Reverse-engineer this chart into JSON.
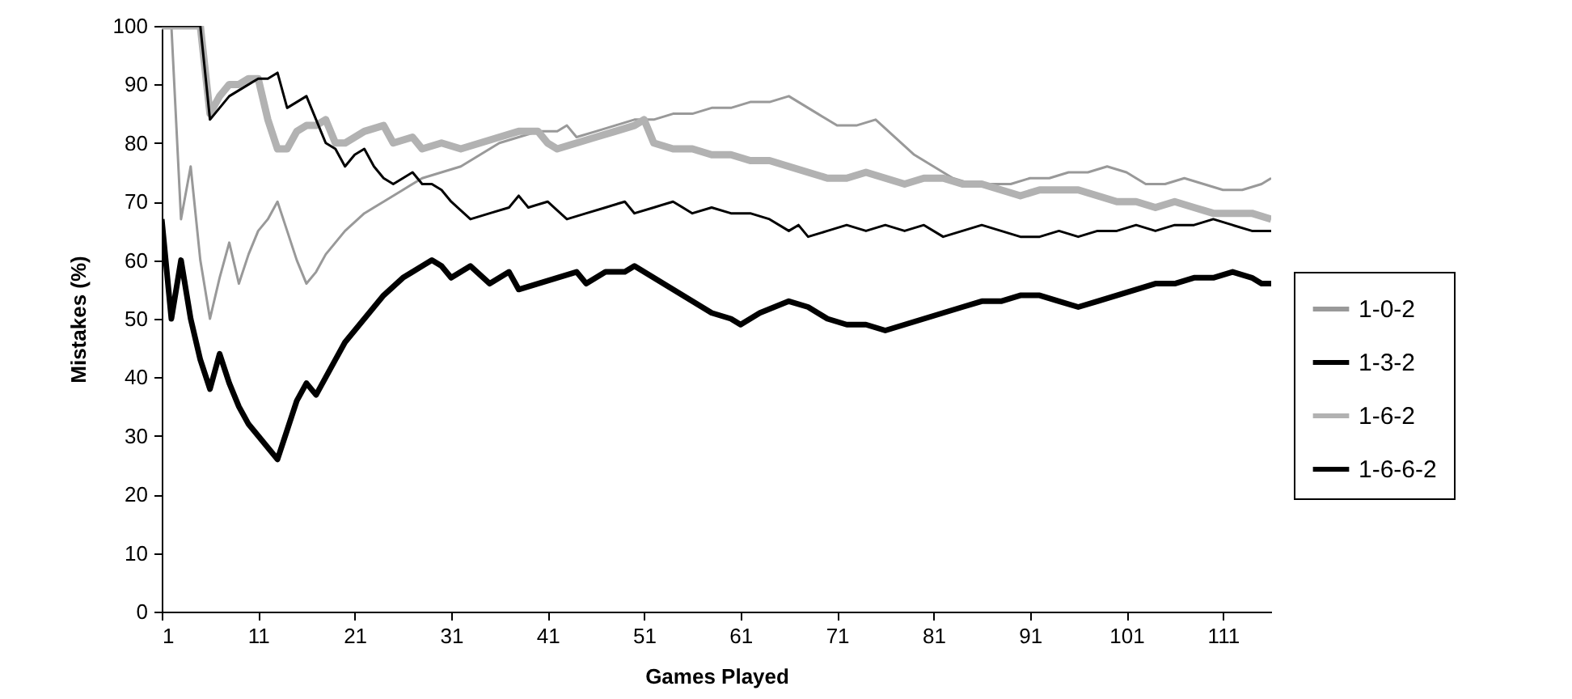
{
  "chart_data": {
    "type": "line",
    "xlabel": "Games Played",
    "ylabel": "Mistakes (%)",
    "xlim": [
      1,
      116
    ],
    "xticks": [
      1,
      11,
      21,
      31,
      41,
      51,
      61,
      71,
      81,
      91,
      101,
      111
    ],
    "ylim": [
      0,
      100
    ],
    "yticks": [
      0,
      10,
      20,
      30,
      40,
      50,
      60,
      70,
      80,
      90,
      100
    ],
    "grid": false,
    "legend": "right",
    "marker": "none",
    "series": [
      {
        "name": "1-0-2",
        "color": "#999999",
        "x": [
          1,
          2,
          3,
          4,
          5,
          6,
          7,
          8,
          9,
          10,
          11,
          12,
          13,
          14,
          15,
          16,
          17,
          18,
          20,
          22,
          24,
          26,
          28,
          30,
          32,
          34,
          36,
          38,
          40,
          42,
          43,
          44,
          46,
          48,
          50,
          52,
          54,
          56,
          58,
          60,
          62,
          64,
          66,
          67,
          69,
          71,
          73,
          75,
          77,
          79,
          81,
          83,
          85,
          87,
          89,
          91,
          93,
          95,
          97,
          99,
          101,
          103,
          105,
          107,
          109,
          111,
          113,
          115,
          116
        ],
        "values": [
          100,
          100,
          67,
          76,
          60,
          50,
          57,
          63,
          56,
          61,
          65,
          67,
          70,
          65,
          60,
          56,
          58,
          61,
          65,
          68,
          70,
          72,
          74,
          75,
          76,
          78,
          80,
          81,
          82,
          82,
          83,
          81,
          82,
          83,
          84,
          84,
          85,
          85,
          86,
          86,
          87,
          87,
          88,
          87,
          85,
          83,
          83,
          84,
          81,
          78,
          76,
          74,
          73,
          73,
          73,
          74,
          74,
          75,
          75,
          76,
          75,
          73,
          73,
          74,
          73,
          72,
          72,
          73,
          74
        ]
      },
      {
        "name": "1-3-2",
        "color": "#000000",
        "x": [
          1,
          2,
          3,
          4,
          5,
          6,
          7,
          8,
          9,
          10,
          11,
          12,
          13,
          14,
          15,
          16,
          17,
          18,
          19,
          20,
          22,
          24,
          26,
          28,
          29,
          30,
          31,
          33,
          35,
          37,
          38,
          40,
          42,
          44,
          45,
          47,
          49,
          50,
          52,
          54,
          56,
          58,
          60,
          61,
          63,
          66,
          68,
          70,
          72,
          74,
          76,
          78,
          80,
          82,
          84,
          86,
          88,
          90,
          92,
          94,
          96,
          98,
          100,
          102,
          104,
          106,
          108,
          110,
          112,
          114,
          115,
          116
        ],
        "values": [
          67,
          50,
          60,
          50,
          43,
          38,
          44,
          39,
          35,
          32,
          30,
          28,
          26,
          31,
          36,
          39,
          37,
          40,
          43,
          46,
          50,
          54,
          57,
          59,
          60,
          59,
          57,
          59,
          56,
          58,
          55,
          56,
          57,
          58,
          56,
          58,
          58,
          59,
          57,
          55,
          53,
          51,
          50,
          49,
          51,
          53,
          52,
          50,
          49,
          49,
          48,
          49,
          50,
          51,
          52,
          53,
          53,
          54,
          54,
          53,
          52,
          53,
          54,
          55,
          56,
          56,
          57,
          57,
          58,
          57,
          56,
          56
        ]
      },
      {
        "name": "1-6-2",
        "color": "#b2b2b2",
        "x": [
          1,
          2,
          3,
          4,
          5,
          6,
          7,
          8,
          9,
          10,
          11,
          12,
          13,
          14,
          15,
          16,
          17,
          18,
          19,
          20,
          21,
          22,
          24,
          25,
          27,
          28,
          30,
          32,
          34,
          36,
          38,
          40,
          41,
          42,
          44,
          46,
          48,
          50,
          51,
          52,
          54,
          56,
          58,
          60,
          62,
          64,
          66,
          68,
          70,
          72,
          74,
          76,
          78,
          80,
          82,
          84,
          86,
          88,
          90,
          92,
          94,
          96,
          98,
          100,
          102,
          104,
          106,
          108,
          110,
          112,
          114,
          116
        ],
        "values": [
          100,
          100,
          100,
          100,
          100,
          85,
          88,
          90,
          90,
          91,
          91,
          84,
          79,
          79,
          82,
          83,
          83,
          84,
          80,
          80,
          81,
          82,
          83,
          80,
          81,
          79,
          80,
          79,
          80,
          81,
          82,
          82,
          80,
          79,
          80,
          81,
          82,
          83,
          84,
          80,
          79,
          79,
          78,
          78,
          77,
          77,
          76,
          75,
          74,
          74,
          75,
          74,
          73,
          74,
          74,
          73,
          73,
          72,
          71,
          72,
          72,
          72,
          71,
          70,
          70,
          69,
          70,
          69,
          68,
          68,
          68,
          67
        ]
      },
      {
        "name": "1-6-6-2",
        "color": "#000000",
        "x": [
          1,
          2,
          3,
          4,
          5,
          6,
          7,
          8,
          9,
          10,
          11,
          12,
          13,
          14,
          15,
          16,
          17,
          18,
          19,
          20,
          21,
          22,
          23,
          24,
          25,
          26,
          27,
          28,
          29,
          30,
          31,
          33,
          35,
          37,
          38,
          39,
          41,
          43,
          45,
          47,
          49,
          50,
          52,
          54,
          56,
          58,
          60,
          62,
          64,
          66,
          67,
          68,
          70,
          72,
          74,
          76,
          78,
          80,
          82,
          84,
          86,
          88,
          90,
          92,
          94,
          96,
          98,
          100,
          102,
          104,
          106,
          108,
          110,
          112,
          114,
          116
        ],
        "values": [
          100,
          100,
          100,
          100,
          100,
          84,
          86,
          88,
          89,
          90,
          91,
          91,
          92,
          86,
          87,
          88,
          84,
          80,
          79,
          76,
          78,
          79,
          76,
          74,
          73,
          74,
          75,
          73,
          73,
          72,
          70,
          67,
          68,
          69,
          71,
          69,
          70,
          67,
          68,
          69,
          70,
          68,
          69,
          70,
          68,
          69,
          68,
          68,
          67,
          65,
          66,
          64,
          65,
          66,
          65,
          66,
          65,
          66,
          64,
          65,
          66,
          65,
          64,
          64,
          65,
          64,
          65,
          65,
          66,
          65,
          66,
          66,
          67,
          66,
          65,
          65
        ]
      }
    ]
  }
}
